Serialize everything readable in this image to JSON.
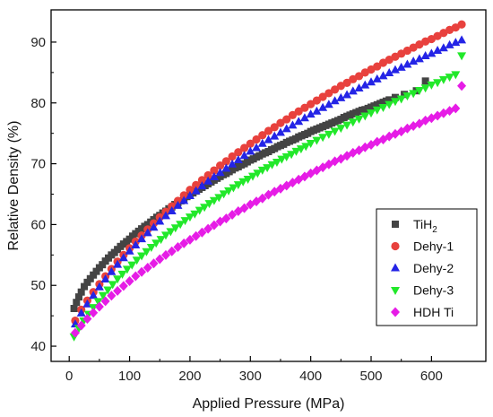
{
  "chart_data": {
    "type": "scatter",
    "xlabel": "Applied Pressure (MPa)",
    "ylabel": "Relative Density (%)",
    "xlim": [
      -30,
      690
    ],
    "ylim": [
      37.5,
      95.3
    ],
    "xticks": [
      0,
      100,
      200,
      300,
      400,
      500,
      600
    ],
    "yticks": [
      40,
      50,
      60,
      70,
      80,
      90
    ],
    "grid": false,
    "legend_position": "lower-right",
    "series": [
      {
        "name": "TiH",
        "name_sub": "2",
        "marker": "square",
        "color": "#444444",
        "x": [
          8,
          12,
          16,
          20,
          25,
          30,
          35,
          40,
          45,
          50,
          55,
          60,
          65,
          70,
          75,
          80,
          85,
          90,
          95,
          100,
          105,
          110,
          115,
          120,
          125,
          130,
          135,
          140,
          145,
          150,
          155,
          160,
          165,
          170,
          175,
          180,
          185,
          190,
          195,
          200,
          205,
          210,
          215,
          220,
          225,
          230,
          235,
          240,
          245,
          250,
          255,
          260,
          265,
          270,
          275,
          280,
          285,
          290,
          295,
          300,
          305,
          310,
          315,
          320,
          325,
          330,
          335,
          340,
          345,
          350,
          355,
          360,
          365,
          370,
          375,
          380,
          385,
          390,
          395,
          400,
          405,
          410,
          415,
          420,
          425,
          430,
          435,
          440,
          445,
          450,
          455,
          460,
          465,
          470,
          475,
          480,
          485,
          490,
          495,
          500,
          505,
          510,
          515,
          520,
          525,
          530,
          540,
          555,
          575,
          590
        ],
        "y": [
          46.2,
          47.2,
          48.1,
          48.9,
          49.8,
          50.5,
          51.1,
          51.7,
          52.3,
          52.9,
          53.4,
          54.0,
          54.5,
          55.0,
          55.4,
          55.9,
          56.4,
          56.8,
          57.2,
          57.6,
          58.1,
          58.5,
          58.9,
          59.3,
          59.7,
          60.0,
          60.4,
          60.8,
          61.2,
          61.5,
          61.9,
          62.2,
          62.6,
          62.9,
          63.3,
          63.6,
          63.9,
          64.3,
          64.6,
          64.9,
          65.2,
          65.5,
          65.8,
          66.1,
          66.4,
          66.7,
          67.0,
          67.3,
          67.6,
          67.9,
          68.2,
          68.4,
          68.7,
          69.0,
          69.3,
          69.5,
          69.8,
          70.0,
          70.3,
          70.6,
          70.8,
          71.1,
          71.3,
          71.6,
          71.8,
          72.0,
          72.3,
          72.5,
          72.8,
          73.0,
          73.2,
          73.5,
          73.7,
          73.9,
          74.1,
          74.4,
          74.6,
          74.8,
          75.0,
          75.3,
          75.5,
          75.7,
          75.9,
          76.1,
          76.3,
          76.5,
          76.7,
          76.9,
          77.1,
          77.3,
          77.6,
          77.8,
          78.0,
          78.2,
          78.4,
          78.6,
          78.8,
          78.9,
          79.1,
          79.3,
          79.5,
          79.7,
          79.9,
          80.1,
          80.3,
          80.5,
          80.9,
          81.4,
          82.0,
          83.6
        ]
      },
      {
        "name": "Dehy-1",
        "marker": "circle",
        "color": "#e8413d",
        "x": [
          10,
          20,
          30,
          40,
          50,
          60,
          70,
          80,
          90,
          100,
          110,
          120,
          130,
          140,
          150,
          160,
          170,
          180,
          190,
          200,
          210,
          220,
          230,
          240,
          250,
          260,
          270,
          280,
          290,
          300,
          310,
          320,
          330,
          340,
          350,
          360,
          370,
          380,
          390,
          400,
          410,
          420,
          430,
          440,
          450,
          460,
          470,
          480,
          490,
          500,
          510,
          520,
          530,
          540,
          550,
          560,
          570,
          580,
          590,
          600,
          610,
          620,
          630,
          640,
          650
        ],
        "y": [
          44.2,
          46.0,
          47.5,
          48.9,
          50.2,
          51.5,
          52.7,
          53.9,
          55.0,
          56.1,
          57.2,
          58.2,
          59.2,
          60.2,
          61.2,
          62.1,
          63.0,
          63.9,
          64.8,
          65.7,
          66.5,
          67.3,
          68.1,
          68.9,
          69.7,
          70.4,
          71.2,
          71.9,
          72.6,
          73.3,
          74.0,
          74.7,
          75.4,
          76.0,
          76.7,
          77.3,
          78.0,
          78.6,
          79.2,
          79.8,
          80.4,
          81.0,
          81.6,
          82.2,
          82.8,
          83.3,
          83.9,
          84.4,
          85.0,
          85.5,
          86.0,
          86.6,
          87.1,
          87.6,
          88.1,
          88.6,
          89.1,
          89.6,
          90.1,
          90.5,
          91.0,
          91.5,
          92.0,
          92.4,
          92.9
        ]
      },
      {
        "name": "Dehy-2",
        "marker": "triangle-up",
        "color": "#2424e6",
        "x": [
          10,
          20,
          30,
          40,
          50,
          60,
          70,
          80,
          90,
          100,
          110,
          120,
          130,
          140,
          150,
          160,
          170,
          180,
          190,
          200,
          210,
          220,
          230,
          240,
          250,
          260,
          270,
          280,
          290,
          300,
          310,
          320,
          330,
          340,
          350,
          360,
          370,
          380,
          390,
          400,
          410,
          420,
          430,
          440,
          450,
          460,
          470,
          480,
          490,
          500,
          510,
          520,
          530,
          540,
          550,
          560,
          570,
          580,
          590,
          600,
          610,
          620,
          630,
          640,
          650
        ],
        "y": [
          43.6,
          45.4,
          46.9,
          48.3,
          49.7,
          51.0,
          52.2,
          53.4,
          54.5,
          55.6,
          56.6,
          57.6,
          58.6,
          59.5,
          60.5,
          61.4,
          62.2,
          63.1,
          63.9,
          64.7,
          65.5,
          66.3,
          67.1,
          67.8,
          68.5,
          69.2,
          69.9,
          70.6,
          71.3,
          72.0,
          72.6,
          73.3,
          73.9,
          74.5,
          75.1,
          75.7,
          76.3,
          76.9,
          77.5,
          78.1,
          78.6,
          79.2,
          79.7,
          80.3,
          80.8,
          81.3,
          81.9,
          82.4,
          82.9,
          83.4,
          83.9,
          84.4,
          84.9,
          85.4,
          85.8,
          86.3,
          86.8,
          87.2,
          87.7,
          88.1,
          88.6,
          89.0,
          89.5,
          89.9,
          90.3
        ]
      },
      {
        "name": "Dehy-3",
        "marker": "triangle-down",
        "color": "#22e82a",
        "x": [
          8,
          16,
          24,
          32,
          40,
          48,
          56,
          64,
          72,
          80,
          88,
          96,
          104,
          112,
          120,
          128,
          136,
          144,
          152,
          160,
          168,
          176,
          184,
          192,
          200,
          208,
          216,
          224,
          232,
          240,
          248,
          256,
          264,
          272,
          280,
          288,
          296,
          304,
          312,
          320,
          328,
          336,
          344,
          352,
          360,
          368,
          376,
          384,
          392,
          400,
          410,
          420,
          430,
          440,
          450,
          460,
          470,
          480,
          490,
          500,
          510,
          520,
          530,
          540,
          550,
          560,
          570,
          580,
          590,
          600,
          610,
          620,
          630,
          640,
          650
        ],
        "y": [
          41.6,
          43.0,
          44.2,
          45.3,
          46.4,
          47.4,
          48.4,
          49.3,
          50.2,
          51.1,
          51.9,
          52.7,
          53.4,
          54.2,
          54.9,
          55.6,
          56.3,
          57.0,
          57.6,
          58.3,
          58.9,
          59.5,
          60.1,
          60.7,
          61.3,
          61.8,
          62.4,
          62.9,
          63.5,
          64.0,
          64.5,
          65.1,
          65.6,
          66.1,
          66.6,
          67.1,
          67.5,
          68.0,
          68.5,
          69.0,
          69.4,
          69.9,
          70.3,
          70.8,
          71.2,
          71.6,
          72.1,
          72.5,
          72.9,
          73.4,
          73.9,
          74.4,
          74.9,
          75.4,
          75.9,
          76.4,
          76.9,
          77.4,
          77.9,
          78.4,
          78.9,
          79.3,
          79.8,
          80.3,
          80.7,
          81.2,
          81.6,
          82.1,
          82.5,
          83.0,
          83.4,
          83.9,
          84.3,
          84.7,
          87.8
        ]
      },
      {
        "name": "HDH Ti",
        "marker": "diamond",
        "color": "#e61ce6",
        "x": [
          10,
          20,
          30,
          40,
          50,
          60,
          70,
          80,
          90,
          100,
          110,
          120,
          130,
          140,
          150,
          160,
          170,
          180,
          190,
          200,
          210,
          220,
          230,
          240,
          250,
          260,
          270,
          280,
          290,
          300,
          310,
          320,
          330,
          340,
          350,
          360,
          370,
          380,
          390,
          400,
          410,
          420,
          430,
          440,
          450,
          460,
          470,
          480,
          490,
          500,
          510,
          520,
          530,
          540,
          550,
          560,
          570,
          580,
          590,
          600,
          610,
          620,
          630,
          640,
          650
        ],
        "y": [
          42.2,
          43.4,
          44.5,
          45.5,
          46.5,
          47.4,
          48.3,
          49.1,
          49.9,
          50.7,
          51.5,
          52.2,
          52.9,
          53.6,
          54.3,
          55.0,
          55.6,
          56.3,
          56.9,
          57.5,
          58.1,
          58.7,
          59.3,
          59.9,
          60.5,
          61.0,
          61.6,
          62.2,
          62.7,
          63.3,
          63.8,
          64.3,
          64.9,
          65.4,
          65.9,
          66.4,
          66.9,
          67.4,
          67.9,
          68.4,
          68.9,
          69.4,
          69.9,
          70.4,
          70.8,
          71.3,
          71.8,
          72.2,
          72.7,
          73.1,
          73.6,
          74.0,
          74.5,
          74.9,
          75.3,
          75.8,
          76.2,
          76.6,
          77.1,
          77.5,
          77.9,
          78.3,
          78.7,
          79.1,
          82.8
        ]
      }
    ]
  }
}
